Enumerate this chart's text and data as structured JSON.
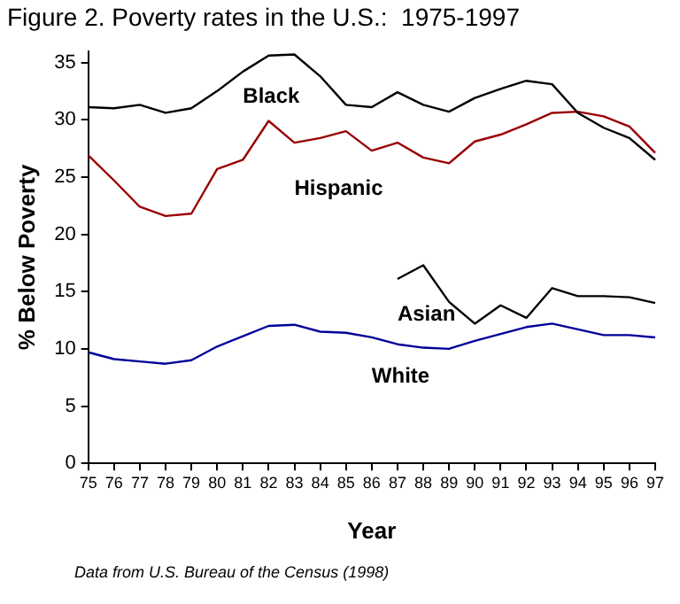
{
  "chart_data": {
    "type": "line",
    "title": "Figure 2. Poverty rates in the U.S.:  1975-1997",
    "xlabel": "Year",
    "ylabel": "% Below Poverty",
    "categories": [
      "75",
      "76",
      "77",
      "78",
      "79",
      "80",
      "81",
      "82",
      "83",
      "84",
      "85",
      "86",
      "87",
      "88",
      "89",
      "90",
      "91",
      "92",
      "93",
      "94",
      "95",
      "96",
      "97"
    ],
    "series": [
      {
        "name": "Black",
        "color": "#000000",
        "values": [
          31.1,
          31.0,
          31.3,
          30.6,
          31.0,
          32.5,
          34.2,
          35.6,
          35.7,
          33.8,
          31.3,
          31.1,
          32.4,
          31.3,
          30.7,
          31.9,
          32.7,
          33.4,
          33.1,
          30.6,
          29.3,
          28.4,
          26.5
        ]
      },
      {
        "name": "Hispanic",
        "color": "#990000",
        "values": [
          26.9,
          24.7,
          22.4,
          21.6,
          21.8,
          25.7,
          26.5,
          29.9,
          28.0,
          28.4,
          29.0,
          27.3,
          28.0,
          26.7,
          26.2,
          28.1,
          28.7,
          29.6,
          30.6,
          30.7,
          30.3,
          29.4,
          27.1
        ]
      },
      {
        "name": "Asian",
        "color": "#000000",
        "values": [
          null,
          null,
          null,
          null,
          null,
          null,
          null,
          null,
          null,
          null,
          null,
          null,
          16.1,
          17.3,
          14.1,
          12.2,
          13.8,
          12.7,
          15.3,
          14.6,
          14.6,
          14.5,
          14.0
        ]
      },
      {
        "name": "White",
        "color": "#000099",
        "values": [
          9.7,
          9.1,
          8.9,
          8.7,
          9.0,
          10.2,
          11.1,
          12.0,
          12.1,
          11.5,
          11.4,
          11.0,
          10.4,
          10.1,
          10.0,
          10.7,
          11.3,
          11.9,
          12.2,
          11.7,
          11.2,
          11.2,
          11.0
        ]
      }
    ],
    "ylim": [
      0,
      36
    ],
    "yticks": [
      0,
      5,
      10,
      15,
      20,
      25,
      30,
      35
    ],
    "grid": false,
    "legend": false,
    "marker": "none",
    "line_style": "solid",
    "annotations": [
      "Data from U.S. Bureau of the Census (1998)"
    ]
  }
}
